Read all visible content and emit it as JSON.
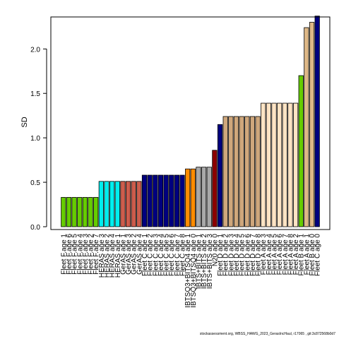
{
  "chart_data": {
    "type": "bar",
    "ylabel": "SD",
    "ylim": [
      0,
      2.36
    ],
    "yticks": [
      "0.0",
      "0.5",
      "1.0",
      "1.5",
      "2.0"
    ],
    "categories": [
      "Fleet F.age 1",
      "Fleet F.age 6",
      "Fleet F.age 5",
      "Fleet F.age 4",
      "Fleet F.age 3",
      "Fleet F.age 2",
      "Fleet F.age 7",
      "HERAS age 3",
      "HERAS age 2",
      "HERAS age 4",
      "HERAS age 1",
      "GerAS age 1",
      "GerAS age 3",
      "GerAS age 2",
      "GerAS age 4",
      "Fleet C age 1",
      "Fleet C age 2",
      "Fleet C age 3",
      "Fleet C age 4",
      "Fleet C age 5",
      "Fleet C age 6",
      "Fleet C age 7",
      "Fleet C age 8",
      "IBTSQ3+BITSQ4 age 1",
      "IBTSQ3+BITSQ4 age 0",
      "IBTS+BITS age 1",
      "IBTS+BITS age 2",
      "IBTS+BITS age 3",
      "N20 age 0",
      "Fleet D age 1",
      "Fleet D age 2",
      "Fleet D age 3",
      "Fleet D age 4",
      "Fleet D age 5",
      "Fleet D age 6",
      "Fleet D age 7",
      "Fleet D age 8",
      "Fleet A age 3",
      "Fleet A age 4",
      "Fleet A age 5",
      "Fleet A age 6",
      "Fleet A age 7",
      "Fleet A age 8",
      "Fleet A age 2",
      "Fleet B age 1",
      "Fleet A age 1",
      "Fleet B age 0",
      "Fleet C age 0"
    ],
    "values": [
      0.33,
      0.33,
      0.33,
      0.33,
      0.33,
      0.33,
      0.33,
      0.51,
      0.51,
      0.51,
      0.51,
      0.51,
      0.51,
      0.51,
      0.51,
      0.58,
      0.58,
      0.58,
      0.58,
      0.58,
      0.58,
      0.58,
      0.58,
      0.65,
      0.65,
      0.67,
      0.67,
      0.67,
      0.86,
      1.15,
      1.24,
      1.24,
      1.24,
      1.24,
      1.24,
      1.24,
      1.24,
      1.39,
      1.39,
      1.39,
      1.39,
      1.39,
      1.39,
      1.39,
      1.7,
      2.24,
      2.3,
      2.37
    ],
    "colors": [
      "#66cc00",
      "#66cc00",
      "#66cc00",
      "#66cc00",
      "#66cc00",
      "#66cc00",
      "#66cc00",
      "#00eeee",
      "#00eeee",
      "#00eeee",
      "#00eeee",
      "#cd5c4c",
      "#cd5c4c",
      "#cd5c4c",
      "#cd5c4c",
      "#000080",
      "#000080",
      "#000080",
      "#000080",
      "#000080",
      "#000080",
      "#000080",
      "#000080",
      "#ff8c00",
      "#ff8c00",
      "#a9a9a9",
      "#a9a9a9",
      "#a9a9a9",
      "#8b0000",
      "#000080",
      "#cfa77c",
      "#cfa77c",
      "#cfa77c",
      "#cfa77c",
      "#cfa77c",
      "#cfa77c",
      "#cfa77c",
      "#ffe4c4",
      "#ffe4c4",
      "#ffe4c4",
      "#ffe4c4",
      "#ffe4c4",
      "#ffe4c4",
      "#ffe4c4",
      "#66cc00",
      "#deb887",
      "#deb887",
      "#000080"
    ],
    "grid": false,
    "legend": "none"
  },
  "footer_text": "stockassessment.org, WBSS_HAWG_2023_GerasIncHaul, r17065 , git:3c872568b0d7"
}
